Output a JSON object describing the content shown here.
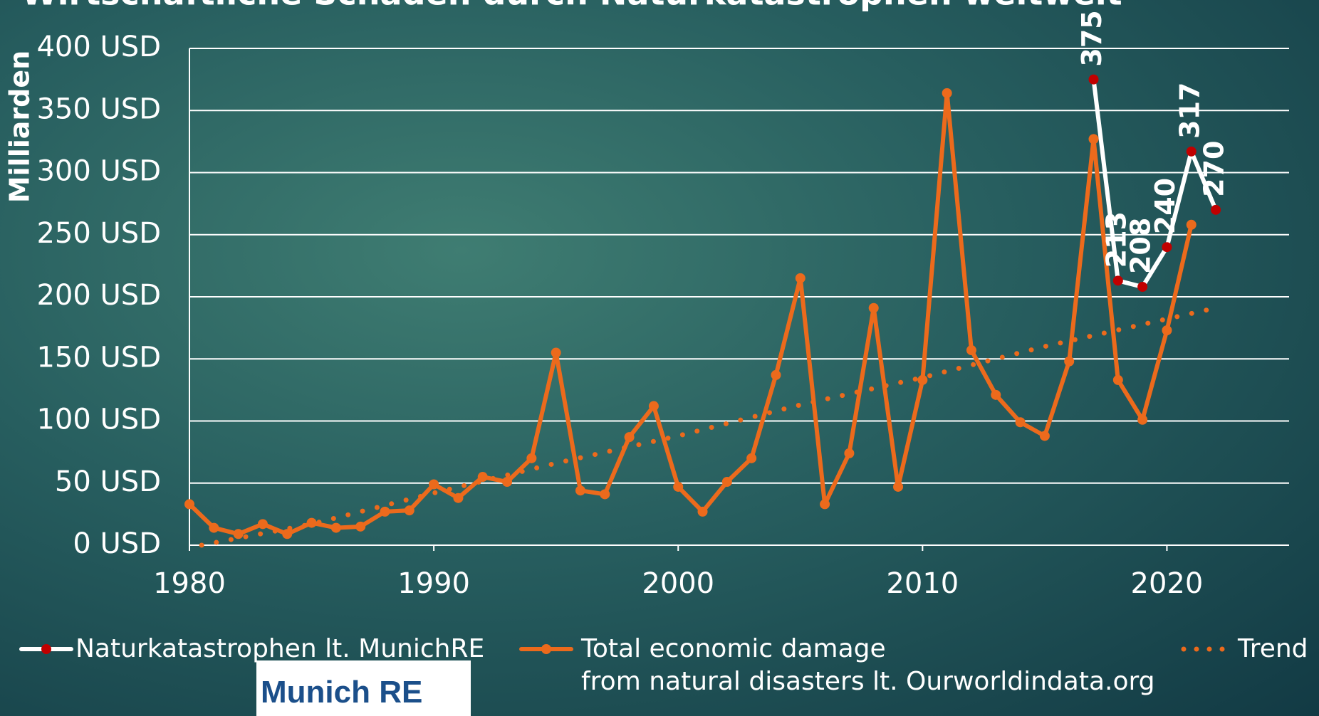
{
  "chart_data": {
    "type": "line",
    "title": "Wirtschaftliche Schäden durch Naturkatastrophen weltweit",
    "y_label": "Milliarden",
    "xlim": [
      1980,
      2025
    ],
    "xticks": [
      1980,
      1990,
      2000,
      2010,
      2020
    ],
    "ylim": [
      0,
      400
    ],
    "yticks": [
      {
        "value": 0,
        "label": "0 USD"
      },
      {
        "value": 50,
        "label": "50 USD"
      },
      {
        "value": 100,
        "label": "100 USD"
      },
      {
        "value": 150,
        "label": "150 USD"
      },
      {
        "value": 200,
        "label": "200 USD"
      },
      {
        "value": 250,
        "label": "250 USD"
      },
      {
        "value": 300,
        "label": "300 USD"
      },
      {
        "value": 350,
        "label": "350 USD"
      },
      {
        "value": 400,
        "label": "400 USD"
      }
    ],
    "grid": true,
    "legend": "bottom",
    "logo": "Munich RE",
    "series": [
      {
        "name": "Naturkatastrophen lt. MunichRE",
        "color": "#ffffff",
        "marker_color": "#c00000",
        "data_labels": true,
        "x": [
          2017,
          2018,
          2019,
          2020,
          2021,
          2022
        ],
        "values": [
          375,
          213,
          208,
          240,
          317,
          270
        ]
      },
      {
        "name": "Total economic damage\nfrom natural disasters lt. Ourworldindata.org",
        "color": "#ec6a1c",
        "marker_color": "#ec6a1c",
        "x": [
          1980,
          1981,
          1982,
          1983,
          1984,
          1985,
          1986,
          1987,
          1988,
          1989,
          1990,
          1991,
          1992,
          1993,
          1994,
          1995,
          1996,
          1997,
          1998,
          1999,
          2000,
          2001,
          2002,
          2003,
          2004,
          2005,
          2006,
          2007,
          2008,
          2009,
          2010,
          2011,
          2012,
          2013,
          2014,
          2015,
          2016,
          2017,
          2018,
          2019,
          2020,
          2021
        ],
        "values": [
          33,
          14,
          9,
          17,
          9,
          18,
          14,
          15,
          27,
          28,
          49,
          38,
          55,
          51,
          70,
          155,
          44,
          41,
          87,
          112,
          47,
          27,
          51,
          70,
          137,
          215,
          33,
          74,
          191,
          47,
          133,
          364,
          157,
          121,
          99,
          88,
          148,
          327,
          133,
          101,
          173,
          258
        ]
      },
      {
        "name": "Trend",
        "color": "#ec6a1c",
        "dotted": true,
        "x": [
          1980.5,
          1985,
          1990,
          1995,
          2000,
          2005,
          2010,
          2015,
          2022
        ],
        "values": [
          0,
          17,
          42,
          66,
          88,
          113,
          135,
          160,
          191
        ]
      }
    ]
  }
}
